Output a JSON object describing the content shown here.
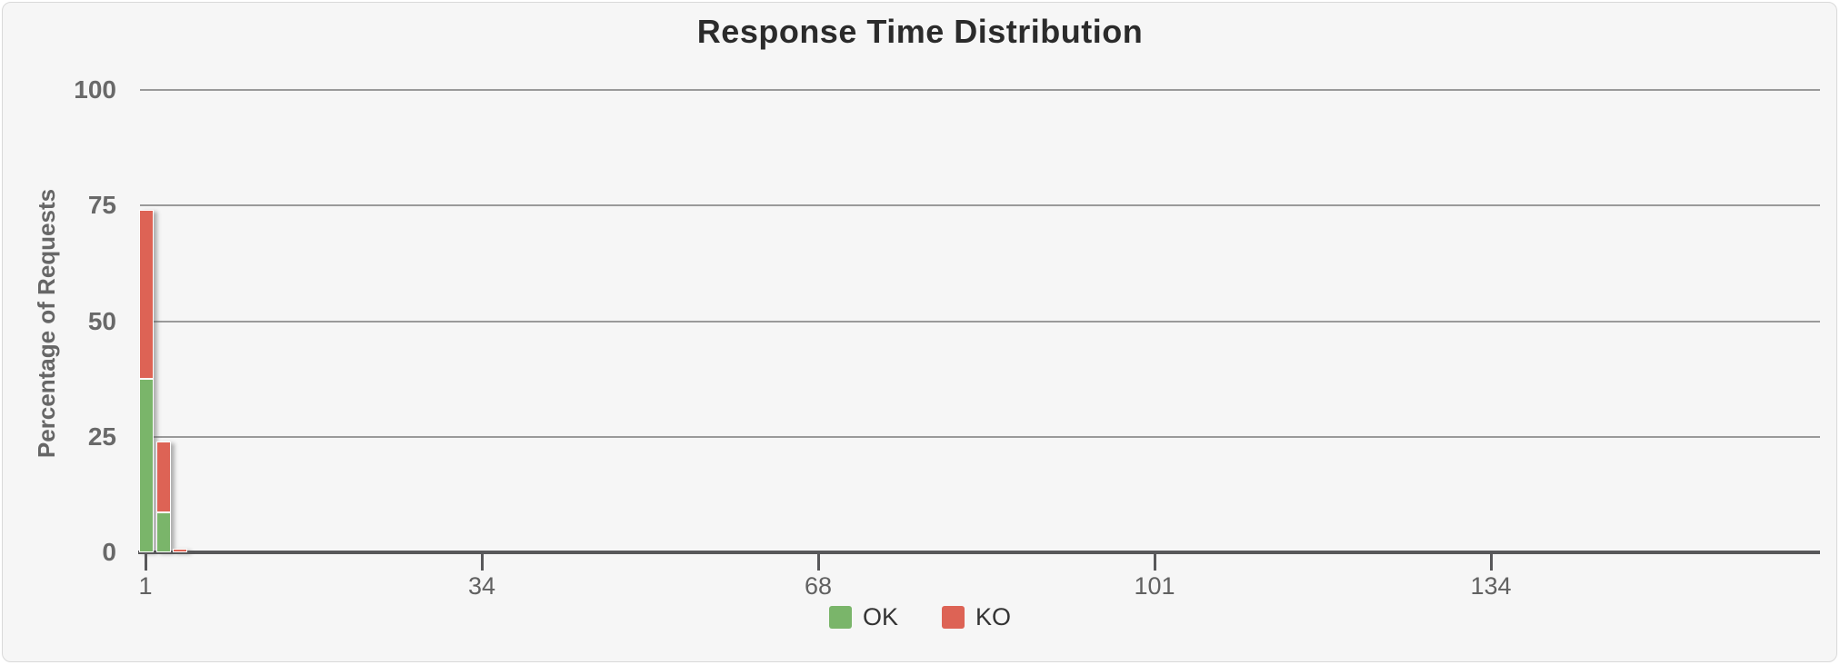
{
  "panel": {
    "background": "#f6f6f6",
    "border_color": "#d9d9d9"
  },
  "chart_data": {
    "type": "bar",
    "stacked": true,
    "title": "Response Time Distribution",
    "ylabel": "Percentage of Requests",
    "xlabel": "",
    "ylim": [
      0,
      100
    ],
    "y_ticks": [
      0,
      25,
      50,
      75,
      100
    ],
    "x_ticks": [
      "1",
      "34",
      "68",
      "101",
      "134"
    ],
    "grid": "horizontal",
    "legend_position": "bottom",
    "series": [
      {
        "name": "OK",
        "color": "#7ab56a",
        "values": [
          37.5,
          8.6,
          0
        ]
      },
      {
        "name": "KO",
        "color": "#dd6355",
        "values": [
          36.5,
          15.4,
          0.8
        ]
      }
    ],
    "colors": {
      "ok": "#7ab56a",
      "ko": "#dd6355",
      "gridline": "#9a9a9a",
      "axis": "#58585a",
      "title_text": "#2b2b2b",
      "tick_text": "#696969"
    }
  }
}
